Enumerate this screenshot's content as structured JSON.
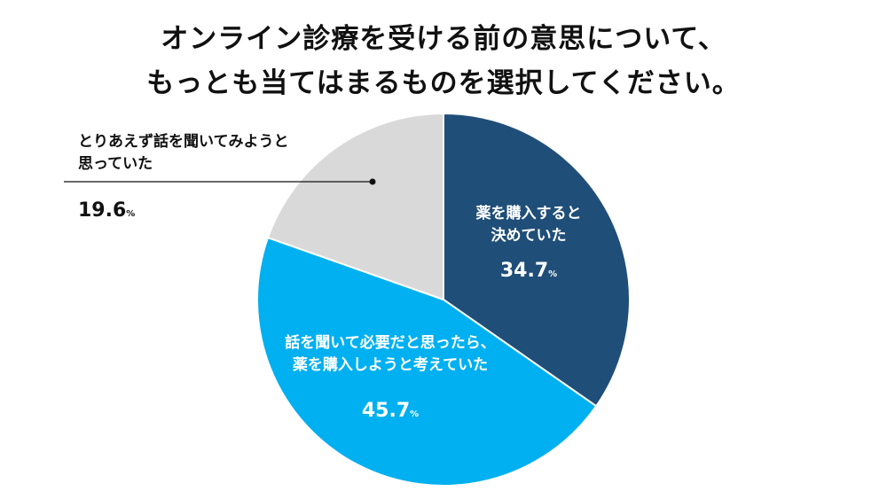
{
  "title": {
    "line1": "オンライン診療を受ける前の意思について、",
    "line2": "もっとも当てはまるものを選択してください。"
  },
  "chart_data": {
    "type": "pie",
    "title": "オンライン診療を受ける前の意思について、もっとも当てはまるものを選択してください。",
    "unit": "%",
    "slices": [
      {
        "label_lines": [
          "薬を購入すると",
          "決めていた"
        ],
        "value": 34.7,
        "value_text": "34.7",
        "color": "#1f4e79",
        "text_color": "#ffffff"
      },
      {
        "label_lines": [
          "話を聞いて必要だと思ったら、",
          "薬を購入しようと考えていた"
        ],
        "value": 45.7,
        "value_text": "45.7",
        "color": "#00b0f0",
        "text_color": "#ffffff"
      },
      {
        "label_lines": [
          "とりあえず話を聞いてみようと",
          "思っていた"
        ],
        "value": 19.6,
        "value_text": "19.6",
        "color": "#d9d9d9",
        "text_color": "#111111"
      }
    ],
    "start_angle": "12 o'clock",
    "direction": "clockwise"
  }
}
